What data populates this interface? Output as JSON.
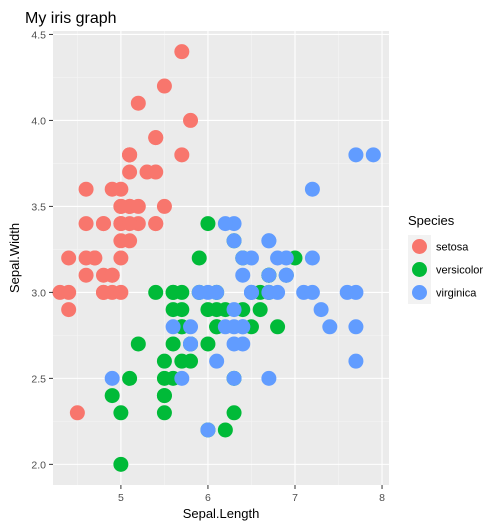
{
  "chart_data": {
    "type": "scatter",
    "title": "My iris graph",
    "xlabel": "Sepal.Length",
    "ylabel": "Sepal.Width",
    "xlim": [
      4.22,
      8.08
    ],
    "ylim": [
      1.88,
      4.52
    ],
    "xticks": [
      5,
      6,
      7,
      8
    ],
    "yticks": [
      2.0,
      2.5,
      3.0,
      3.5,
      4.0,
      4.5
    ],
    "xtick_labels": [
      "5",
      "6",
      "7",
      "8"
    ],
    "ytick_labels": [
      "2.0",
      "2.5",
      "3.0",
      "3.5",
      "4.0",
      "4.5"
    ],
    "grid": true,
    "legend": {
      "title": "Species",
      "position": "right"
    },
    "series": [
      {
        "name": "setosa",
        "color": "#F8766D",
        "points": [
          [
            5.1,
            3.5
          ],
          [
            4.9,
            3.0
          ],
          [
            4.7,
            3.2
          ],
          [
            4.6,
            3.1
          ],
          [
            5.0,
            3.6
          ],
          [
            5.4,
            3.9
          ],
          [
            4.6,
            3.4
          ],
          [
            5.0,
            3.4
          ],
          [
            4.4,
            2.9
          ],
          [
            4.9,
            3.1
          ],
          [
            5.4,
            3.7
          ],
          [
            4.8,
            3.4
          ],
          [
            4.8,
            3.0
          ],
          [
            4.3,
            3.0
          ],
          [
            5.8,
            4.0
          ],
          [
            5.7,
            4.4
          ],
          [
            5.4,
            3.9
          ],
          [
            5.1,
            3.5
          ],
          [
            5.7,
            3.8
          ],
          [
            5.1,
            3.8
          ],
          [
            5.4,
            3.4
          ],
          [
            5.1,
            3.7
          ],
          [
            4.6,
            3.6
          ],
          [
            5.1,
            3.3
          ],
          [
            4.8,
            3.4
          ],
          [
            5.0,
            3.0
          ],
          [
            5.0,
            3.4
          ],
          [
            5.2,
            3.5
          ],
          [
            5.2,
            3.4
          ],
          [
            4.7,
            3.2
          ],
          [
            4.8,
            3.1
          ],
          [
            5.4,
            3.4
          ],
          [
            5.2,
            4.1
          ],
          [
            5.5,
            4.2
          ],
          [
            4.9,
            3.1
          ],
          [
            5.0,
            3.2
          ],
          [
            5.5,
            3.5
          ],
          [
            4.9,
            3.6
          ],
          [
            4.4,
            3.0
          ],
          [
            5.1,
            3.4
          ],
          [
            5.0,
            3.5
          ],
          [
            4.5,
            2.3
          ],
          [
            4.4,
            3.2
          ],
          [
            5.0,
            3.5
          ],
          [
            5.1,
            3.8
          ],
          [
            4.8,
            3.0
          ],
          [
            5.1,
            3.8
          ],
          [
            4.6,
            3.2
          ],
          [
            5.3,
            3.7
          ],
          [
            5.0,
            3.3
          ]
        ]
      },
      {
        "name": "versicolor",
        "color": "#00BA38",
        "points": [
          [
            7.0,
            3.2
          ],
          [
            6.4,
            3.2
          ],
          [
            6.9,
            3.1
          ],
          [
            5.5,
            2.3
          ],
          [
            6.5,
            2.8
          ],
          [
            5.7,
            2.8
          ],
          [
            6.3,
            3.3
          ],
          [
            4.9,
            2.4
          ],
          [
            6.6,
            2.9
          ],
          [
            5.2,
            2.7
          ],
          [
            5.0,
            2.0
          ],
          [
            5.9,
            3.0
          ],
          [
            6.0,
            2.2
          ],
          [
            6.1,
            2.9
          ],
          [
            5.6,
            2.9
          ],
          [
            6.7,
            3.1
          ],
          [
            5.6,
            3.0
          ],
          [
            5.8,
            2.7
          ],
          [
            6.2,
            2.2
          ],
          [
            5.6,
            2.5
          ],
          [
            5.9,
            3.2
          ],
          [
            6.1,
            2.8
          ],
          [
            6.3,
            2.5
          ],
          [
            6.1,
            2.8
          ],
          [
            6.4,
            2.9
          ],
          [
            6.6,
            3.0
          ],
          [
            6.8,
            2.8
          ],
          [
            6.7,
            3.0
          ],
          [
            6.0,
            2.9
          ],
          [
            5.7,
            2.6
          ],
          [
            5.5,
            2.4
          ],
          [
            5.5,
            2.4
          ],
          [
            5.8,
            2.7
          ],
          [
            6.0,
            2.7
          ],
          [
            5.4,
            3.0
          ],
          [
            6.0,
            3.4
          ],
          [
            6.7,
            3.1
          ],
          [
            6.3,
            2.3
          ],
          [
            5.6,
            3.0
          ],
          [
            5.5,
            2.5
          ],
          [
            5.5,
            2.6
          ],
          [
            6.1,
            3.0
          ],
          [
            5.8,
            2.6
          ],
          [
            5.0,
            2.3
          ],
          [
            5.6,
            2.7
          ],
          [
            5.7,
            3.0
          ],
          [
            5.7,
            2.9
          ],
          [
            6.2,
            2.9
          ],
          [
            5.1,
            2.5
          ],
          [
            5.7,
            2.8
          ]
        ]
      },
      {
        "name": "virginica",
        "color": "#619CFF",
        "points": [
          [
            6.3,
            3.3
          ],
          [
            5.8,
            2.7
          ],
          [
            7.1,
            3.0
          ],
          [
            6.3,
            2.9
          ],
          [
            6.5,
            3.0
          ],
          [
            7.6,
            3.0
          ],
          [
            4.9,
            2.5
          ],
          [
            7.3,
            2.9
          ],
          [
            6.7,
            2.5
          ],
          [
            7.2,
            3.6
          ],
          [
            6.5,
            3.2
          ],
          [
            6.4,
            2.7
          ],
          [
            6.8,
            3.0
          ],
          [
            5.7,
            2.5
          ],
          [
            5.8,
            2.8
          ],
          [
            6.4,
            3.2
          ],
          [
            6.5,
            3.0
          ],
          [
            7.7,
            3.8
          ],
          [
            7.7,
            2.6
          ],
          [
            6.0,
            2.2
          ],
          [
            6.9,
            3.2
          ],
          [
            5.6,
            2.8
          ],
          [
            7.7,
            2.8
          ],
          [
            6.3,
            2.7
          ],
          [
            6.7,
            3.3
          ],
          [
            7.2,
            3.2
          ],
          [
            6.2,
            2.8
          ],
          [
            6.1,
            3.0
          ],
          [
            6.4,
            2.8
          ],
          [
            7.2,
            3.0
          ],
          [
            7.4,
            2.8
          ],
          [
            7.9,
            3.8
          ],
          [
            6.4,
            2.8
          ],
          [
            6.3,
            2.8
          ],
          [
            6.1,
            2.6
          ],
          [
            7.7,
            3.0
          ],
          [
            6.3,
            3.4
          ],
          [
            6.4,
            3.1
          ],
          [
            6.0,
            3.0
          ],
          [
            6.9,
            3.1
          ],
          [
            6.7,
            3.1
          ],
          [
            6.9,
            3.1
          ],
          [
            5.8,
            2.7
          ],
          [
            6.8,
            3.2
          ],
          [
            6.7,
            3.3
          ],
          [
            6.7,
            3.0
          ],
          [
            6.3,
            2.5
          ],
          [
            6.5,
            3.0
          ],
          [
            6.2,
            3.4
          ],
          [
            5.9,
            3.0
          ]
        ]
      }
    ]
  }
}
